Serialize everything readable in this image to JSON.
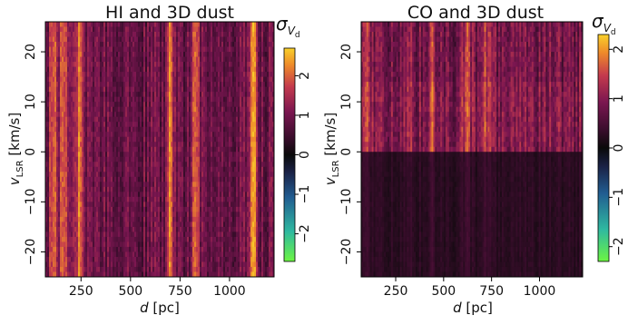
{
  "chart_data": [
    {
      "type": "heatmap",
      "title": "HI and 3D dust",
      "xlabel": "d [pc]",
      "xlabel_parts": {
        "var": "d",
        "unit": " [pc]"
      },
      "ylabel": "v_LSR [km/s]",
      "ylabel_parts": {
        "var": "v",
        "sub": "LSR",
        "unit": " [km/s]"
      },
      "xlim": [
        70,
        1225
      ],
      "ylim": [
        -25,
        26
      ],
      "xticks": [
        250,
        500,
        750,
        1000
      ],
      "xtick_labels": [
        "250",
        "500",
        "750",
        "1000"
      ],
      "yticks": [
        20,
        10,
        0,
        -10,
        -20
      ],
      "ytick_labels": [
        "20",
        "10",
        "0",
        "−10",
        "−20"
      ],
      "colorbar": {
        "label": "σ_Vd",
        "label_parts": {
          "sym": "σ",
          "sub": "V",
          "subsub": "d"
        },
        "range": [
          -2.7,
          2.7
        ],
        "ticks": [
          2,
          1,
          0,
          -1,
          -2
        ],
        "tick_labels": [
          "2",
          "1",
          "0",
          "−1",
          "−2"
        ],
        "colormap": "diverging: lime-green → teal → dark blue → black → purple → magenta → orange → yellow"
      },
      "data_summary": {
        "low_velocity_band": {
          "v_range": [
            -25,
            0
          ],
          "typical_value": 0.9
        },
        "high_velocity_band": {
          "v_range": [
            0,
            26
          ],
          "typical_value": 0.9
        },
        "bright_streaks_at_d": [
          110,
          160,
          240,
          700,
          830,
          1120
        ],
        "peak_value": 2.5
      }
    },
    {
      "type": "heatmap",
      "title": "CO and 3D dust",
      "xlabel": "d [pc]",
      "xlabel_parts": {
        "var": "d",
        "unit": " [pc]"
      },
      "ylabel": "v_LSR [km/s]",
      "ylabel_parts": {
        "var": "v",
        "sub": "LSR",
        "unit": " [km/s]"
      },
      "xlim": [
        70,
        1225
      ],
      "ylim": [
        -25,
        26
      ],
      "xticks": [
        250,
        500,
        750,
        1000
      ],
      "xtick_labels": [
        "250",
        "500",
        "750",
        "1000"
      ],
      "yticks": [
        20,
        10,
        0,
        -10,
        -20
      ],
      "ytick_labels": [
        "20",
        "10",
        "0",
        "−10",
        "−20"
      ],
      "colorbar": {
        "label": "σ_Vd",
        "label_parts": {
          "sym": "σ",
          "sub": "V",
          "subsub": "d"
        },
        "range": [
          -2.3,
          2.3
        ],
        "ticks": [
          2,
          1,
          0,
          -1,
          -2
        ],
        "tick_labels": [
          "2",
          "1",
          "0",
          "−1",
          "−2"
        ],
        "colormap": "diverging: lime-green → teal → dark blue → black → purple → magenta → orange → yellow"
      },
      "data_summary": {
        "low_velocity_band": {
          "v_range": [
            -25,
            0
          ],
          "typical_value": 0.25
        },
        "high_velocity_band": {
          "v_range": [
            0,
            26
          ],
          "typical_value": 0.85
        },
        "bright_streaks_at_d": [
          100,
          330,
          440,
          620,
          720
        ],
        "peak_value": 1.9
      }
    }
  ]
}
